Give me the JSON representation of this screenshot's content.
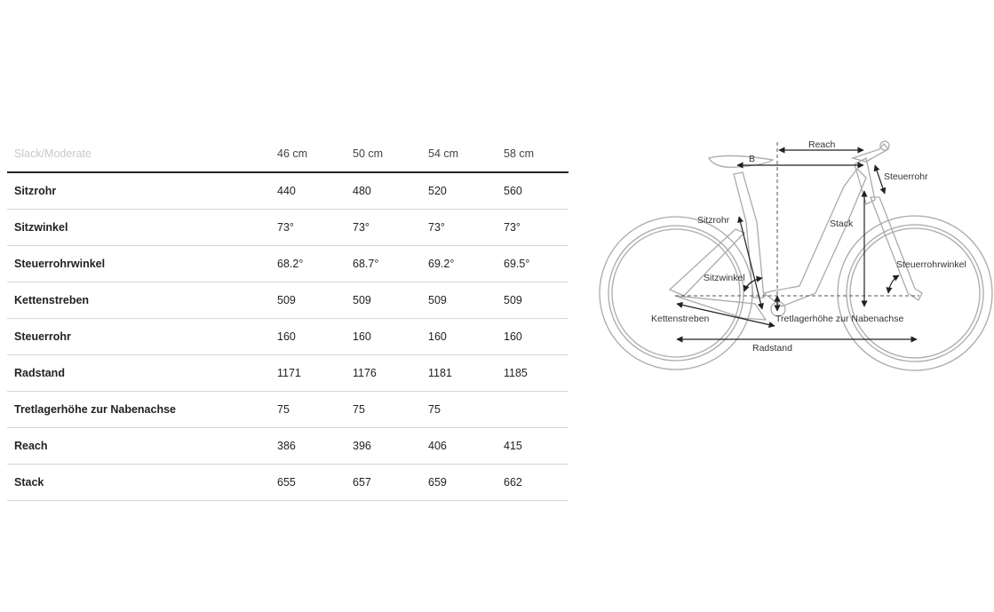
{
  "table": {
    "header": {
      "label": "Slack/Moderate",
      "sizes": [
        "46 cm",
        "50 cm",
        "54 cm",
        "58 cm"
      ]
    },
    "rows": [
      {
        "label": "Sitzrohr",
        "values": [
          "440",
          "480",
          "520",
          "560"
        ]
      },
      {
        "label": "Sitzwinkel",
        "values": [
          "73°",
          "73°",
          "73°",
          "73°"
        ]
      },
      {
        "label": "Steuerrohrwinkel",
        "values": [
          "68.2°",
          "68.7°",
          "69.2°",
          "69.5°"
        ]
      },
      {
        "label": "Kettenstreben",
        "values": [
          "509",
          "509",
          "509",
          "509"
        ]
      },
      {
        "label": "Steuerrohr",
        "values": [
          "160",
          "160",
          "160",
          "160"
        ]
      },
      {
        "label": "Radstand",
        "values": [
          "1171",
          "1176",
          "1181",
          "1185"
        ]
      },
      {
        "label": "Tretlagerhöhe zur Nabenachse",
        "values": [
          "75",
          "75",
          "75",
          ""
        ]
      },
      {
        "label": "Reach",
        "values": [
          "386",
          "396",
          "406",
          "415"
        ]
      },
      {
        "label": "Stack",
        "values": [
          "655",
          "657",
          "659",
          "662"
        ]
      }
    ]
  },
  "diagram": {
    "labels": {
      "reach": "Reach",
      "b": "B",
      "steuerrohr": "Steuerrohr",
      "sitzrohr": "Sitzrohr",
      "stack": "Stack",
      "steuerrohrwinkel": "Steuerrohrwinkel",
      "sitzwinkel": "Sitzwinkel",
      "kettenstreben": "Kettenstreben",
      "tretlager": "Tretlagerhöhe zur Nabenachse",
      "radstand": "Radstand"
    }
  }
}
